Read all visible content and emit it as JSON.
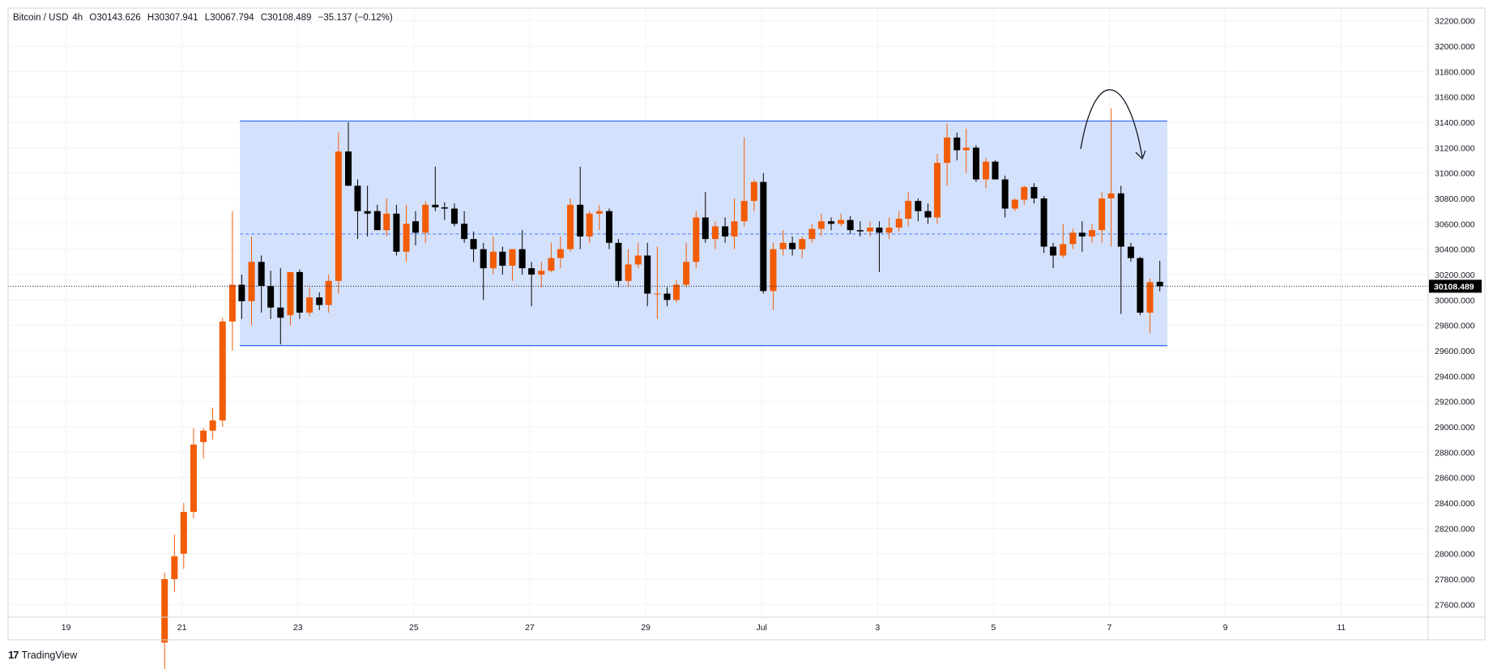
{
  "header": {
    "symbol": "Bitcoin / USD",
    "interval": "4h",
    "open": "O30143.626",
    "high": "H30307.941",
    "low": "L30067.794",
    "close": "C30108.489",
    "change": "−35.137 (−0.12%)"
  },
  "brand": {
    "name": "TradingView"
  },
  "colors": {
    "up": "#f25c05",
    "down": "#000000",
    "range_fill": "#cddcfc",
    "range_line": "#2962ff",
    "grid": "#f0f3fa"
  },
  "chart_data": {
    "type": "candlestick",
    "ylim": [
      27500,
      32300
    ],
    "y_ticks": [
      "32200.000",
      "32000.000",
      "31800.000",
      "31600.000",
      "31400.000",
      "31200.000",
      "31000.000",
      "30800.000",
      "30600.000",
      "30400.000",
      "30200.000",
      "30000.000",
      "29800.000",
      "29600.000",
      "29400.000",
      "29200.000",
      "29000.000",
      "28800.000",
      "28600.000",
      "28400.000",
      "28200.000",
      "28000.000",
      "27800.000",
      "27600.000"
    ],
    "x_ticks": [
      {
        "label": "19",
        "day": 19
      },
      {
        "label": "21",
        "day": 21
      },
      {
        "label": "23",
        "day": 23
      },
      {
        "label": "25",
        "day": 25
      },
      {
        "label": "27",
        "day": 27
      },
      {
        "label": "29",
        "day": 29
      },
      {
        "label": "Jul",
        "day": 31
      },
      {
        "label": "3",
        "day": 33
      },
      {
        "label": "5",
        "day": 35
      },
      {
        "label": "7",
        "day": 37
      },
      {
        "label": "9",
        "day": 39
      },
      {
        "label": "11",
        "day": 41
      }
    ],
    "xlim": [
      18,
      42.5
    ],
    "last_price": "30108.489",
    "last_value": 30108,
    "range_box": {
      "start_day": 22.0,
      "end_day": 38.0,
      "top": 31410,
      "bottom": 29640,
      "mid": 30520
    },
    "candles": [
      {
        "t": 20.7,
        "o": 27300,
        "h": 27850,
        "l": 27000,
        "c": 27800
      },
      {
        "t": 20.87,
        "o": 27800,
        "h": 28150,
        "l": 27700,
        "c": 27980
      },
      {
        "t": 21.03,
        "o": 28000,
        "h": 28400,
        "l": 27880,
        "c": 28330
      },
      {
        "t": 21.2,
        "o": 28330,
        "h": 28990,
        "l": 28280,
        "c": 28860
      },
      {
        "t": 21.37,
        "o": 28880,
        "h": 28990,
        "l": 28750,
        "c": 28970
      },
      {
        "t": 21.53,
        "o": 28970,
        "h": 29150,
        "l": 28900,
        "c": 29050
      },
      {
        "t": 21.7,
        "o": 29050,
        "h": 29860,
        "l": 29000,
        "c": 29830
      },
      {
        "t": 21.87,
        "o": 29830,
        "h": 30700,
        "l": 29600,
        "c": 30120
      },
      {
        "t": 22.03,
        "o": 30120,
        "h": 30200,
        "l": 29850,
        "c": 29990
      },
      {
        "t": 22.2,
        "o": 29990,
        "h": 30500,
        "l": 29800,
        "c": 30300
      },
      {
        "t": 22.37,
        "o": 30300,
        "h": 30350,
        "l": 29900,
        "c": 30110
      },
      {
        "t": 22.53,
        "o": 30110,
        "h": 30230,
        "l": 29850,
        "c": 29940
      },
      {
        "t": 22.7,
        "o": 29940,
        "h": 30250,
        "l": 29650,
        "c": 29860
      },
      {
        "t": 22.87,
        "o": 29880,
        "h": 30200,
        "l": 29800,
        "c": 30220
      },
      {
        "t": 23.03,
        "o": 30220,
        "h": 30240,
        "l": 29850,
        "c": 29900
      },
      {
        "t": 23.2,
        "o": 29900,
        "h": 30100,
        "l": 29870,
        "c": 30020
      },
      {
        "t": 23.37,
        "o": 30020,
        "h": 30060,
        "l": 29920,
        "c": 29960
      },
      {
        "t": 23.53,
        "o": 29960,
        "h": 30200,
        "l": 29900,
        "c": 30150
      },
      {
        "t": 23.7,
        "o": 30150,
        "h": 31320,
        "l": 30050,
        "c": 31170
      },
      {
        "t": 23.87,
        "o": 31170,
        "h": 31400,
        "l": 30900,
        "c": 30900
      },
      {
        "t": 24.03,
        "o": 30900,
        "h": 30950,
        "l": 30480,
        "c": 30700
      },
      {
        "t": 24.2,
        "o": 30700,
        "h": 30900,
        "l": 30500,
        "c": 30680
      },
      {
        "t": 24.37,
        "o": 30700,
        "h": 30750,
        "l": 30550,
        "c": 30550
      },
      {
        "t": 24.53,
        "o": 30550,
        "h": 30800,
        "l": 30500,
        "c": 30680
      },
      {
        "t": 24.7,
        "o": 30680,
        "h": 30750,
        "l": 30350,
        "c": 30380
      },
      {
        "t": 24.87,
        "o": 30380,
        "h": 30750,
        "l": 30300,
        "c": 30600
      },
      {
        "t": 25.03,
        "o": 30620,
        "h": 30700,
        "l": 30430,
        "c": 30530
      },
      {
        "t": 25.2,
        "o": 30530,
        "h": 30780,
        "l": 30450,
        "c": 30750
      },
      {
        "t": 25.37,
        "o": 30750,
        "h": 31050,
        "l": 30700,
        "c": 30730
      },
      {
        "t": 25.53,
        "o": 30730,
        "h": 30770,
        "l": 30630,
        "c": 30720
      },
      {
        "t": 25.7,
        "o": 30720,
        "h": 30760,
        "l": 30580,
        "c": 30600
      },
      {
        "t": 25.87,
        "o": 30600,
        "h": 30700,
        "l": 30450,
        "c": 30480
      },
      {
        "t": 26.03,
        "o": 30480,
        "h": 30540,
        "l": 30300,
        "c": 30400
      },
      {
        "t": 26.2,
        "o": 30400,
        "h": 30450,
        "l": 30000,
        "c": 30250
      },
      {
        "t": 26.37,
        "o": 30250,
        "h": 30500,
        "l": 30200,
        "c": 30380
      },
      {
        "t": 26.53,
        "o": 30380,
        "h": 30420,
        "l": 30200,
        "c": 30270
      },
      {
        "t": 26.7,
        "o": 30270,
        "h": 30400,
        "l": 30150,
        "c": 30400
      },
      {
        "t": 26.87,
        "o": 30400,
        "h": 30550,
        "l": 30200,
        "c": 30250
      },
      {
        "t": 27.03,
        "o": 30250,
        "h": 30300,
        "l": 29950,
        "c": 30200
      },
      {
        "t": 27.2,
        "o": 30200,
        "h": 30300,
        "l": 30100,
        "c": 30230
      },
      {
        "t": 27.37,
        "o": 30230,
        "h": 30450,
        "l": 30220,
        "c": 30330
      },
      {
        "t": 27.53,
        "o": 30330,
        "h": 30500,
        "l": 30250,
        "c": 30400
      },
      {
        "t": 27.7,
        "o": 30400,
        "h": 30800,
        "l": 30380,
        "c": 30750
      },
      {
        "t": 27.87,
        "o": 30750,
        "h": 31050,
        "l": 30400,
        "c": 30500
      },
      {
        "t": 28.03,
        "o": 30500,
        "h": 30700,
        "l": 30450,
        "c": 30680
      },
      {
        "t": 28.2,
        "o": 30680,
        "h": 30750,
        "l": 30550,
        "c": 30700
      },
      {
        "t": 28.37,
        "o": 30700,
        "h": 30720,
        "l": 30400,
        "c": 30450
      },
      {
        "t": 28.53,
        "o": 30450,
        "h": 30480,
        "l": 30100,
        "c": 30150
      },
      {
        "t": 28.7,
        "o": 30150,
        "h": 30400,
        "l": 30100,
        "c": 30280
      },
      {
        "t": 28.87,
        "o": 30280,
        "h": 30450,
        "l": 30250,
        "c": 30350
      },
      {
        "t": 29.03,
        "o": 30350,
        "h": 30450,
        "l": 29950,
        "c": 30050
      },
      {
        "t": 29.2,
        "o": 30050,
        "h": 30420,
        "l": 29850,
        "c": 30050
      },
      {
        "t": 29.37,
        "o": 30050,
        "h": 30100,
        "l": 29950,
        "c": 30000
      },
      {
        "t": 29.53,
        "o": 30000,
        "h": 30160,
        "l": 29980,
        "c": 30120
      },
      {
        "t": 29.7,
        "o": 30120,
        "h": 30450,
        "l": 30100,
        "c": 30300
      },
      {
        "t": 29.87,
        "o": 30300,
        "h": 30700,
        "l": 30250,
        "c": 30650
      },
      {
        "t": 30.03,
        "o": 30650,
        "h": 30850,
        "l": 30450,
        "c": 30480
      },
      {
        "t": 30.2,
        "o": 30480,
        "h": 30620,
        "l": 30400,
        "c": 30580
      },
      {
        "t": 30.37,
        "o": 30580,
        "h": 30650,
        "l": 30450,
        "c": 30500
      },
      {
        "t": 30.53,
        "o": 30500,
        "h": 30800,
        "l": 30400,
        "c": 30620
      },
      {
        "t": 30.7,
        "o": 30620,
        "h": 31280,
        "l": 30580,
        "c": 30780
      },
      {
        "t": 30.87,
        "o": 30780,
        "h": 30950,
        "l": 30700,
        "c": 30930
      },
      {
        "t": 31.03,
        "o": 30930,
        "h": 31000,
        "l": 30050,
        "c": 30070
      },
      {
        "t": 31.2,
        "o": 30070,
        "h": 30450,
        "l": 29920,
        "c": 30400
      },
      {
        "t": 31.37,
        "o": 30400,
        "h": 30550,
        "l": 30350,
        "c": 30450
      },
      {
        "t": 31.53,
        "o": 30450,
        "h": 30500,
        "l": 30350,
        "c": 30400
      },
      {
        "t": 31.7,
        "o": 30400,
        "h": 30500,
        "l": 30330,
        "c": 30480
      },
      {
        "t": 31.87,
        "o": 30480,
        "h": 30600,
        "l": 30450,
        "c": 30560
      },
      {
        "t": 32.03,
        "o": 30560,
        "h": 30680,
        "l": 30500,
        "c": 30620
      },
      {
        "t": 32.2,
        "o": 30620,
        "h": 30650,
        "l": 30550,
        "c": 30600
      },
      {
        "t": 32.37,
        "o": 30600,
        "h": 30680,
        "l": 30580,
        "c": 30630
      },
      {
        "t": 32.53,
        "o": 30630,
        "h": 30660,
        "l": 30520,
        "c": 30550
      },
      {
        "t": 32.7,
        "o": 30550,
        "h": 30620,
        "l": 30500,
        "c": 30540
      },
      {
        "t": 32.87,
        "o": 30540,
        "h": 30620,
        "l": 30500,
        "c": 30570
      },
      {
        "t": 33.03,
        "o": 30570,
        "h": 30620,
        "l": 30220,
        "c": 30530
      },
      {
        "t": 33.2,
        "o": 30530,
        "h": 30650,
        "l": 30480,
        "c": 30570
      },
      {
        "t": 33.37,
        "o": 30570,
        "h": 30700,
        "l": 30540,
        "c": 30640
      },
      {
        "t": 33.53,
        "o": 30640,
        "h": 30850,
        "l": 30580,
        "c": 30780
      },
      {
        "t": 33.7,
        "o": 30780,
        "h": 30800,
        "l": 30620,
        "c": 30700
      },
      {
        "t": 33.87,
        "o": 30700,
        "h": 30760,
        "l": 30600,
        "c": 30650
      },
      {
        "t": 34.03,
        "o": 30650,
        "h": 31150,
        "l": 30600,
        "c": 31080
      },
      {
        "t": 34.2,
        "o": 31080,
        "h": 31390,
        "l": 30900,
        "c": 31280
      },
      {
        "t": 34.37,
        "o": 31280,
        "h": 31320,
        "l": 31100,
        "c": 31180
      },
      {
        "t": 34.53,
        "o": 31180,
        "h": 31350,
        "l": 31000,
        "c": 31200
      },
      {
        "t": 34.7,
        "o": 31200,
        "h": 31220,
        "l": 30930,
        "c": 30950
      },
      {
        "t": 34.87,
        "o": 30950,
        "h": 31120,
        "l": 30880,
        "c": 31090
      },
      {
        "t": 35.03,
        "o": 31090,
        "h": 31100,
        "l": 30950,
        "c": 30950
      },
      {
        "t": 35.2,
        "o": 30950,
        "h": 30980,
        "l": 30650,
        "c": 30720
      },
      {
        "t": 35.37,
        "o": 30720,
        "h": 30800,
        "l": 30700,
        "c": 30790
      },
      {
        "t": 35.53,
        "o": 30790,
        "h": 30900,
        "l": 30750,
        "c": 30890
      },
      {
        "t": 35.7,
        "o": 30890,
        "h": 30920,
        "l": 30760,
        "c": 30800
      },
      {
        "t": 35.87,
        "o": 30800,
        "h": 30820,
        "l": 30370,
        "c": 30420
      },
      {
        "t": 36.03,
        "o": 30420,
        "h": 30450,
        "l": 30250,
        "c": 30350
      },
      {
        "t": 36.2,
        "o": 30350,
        "h": 30600,
        "l": 30330,
        "c": 30440
      },
      {
        "t": 36.37,
        "o": 30440,
        "h": 30560,
        "l": 30400,
        "c": 30530
      },
      {
        "t": 36.53,
        "o": 30530,
        "h": 30620,
        "l": 30380,
        "c": 30500
      },
      {
        "t": 36.7,
        "o": 30500,
        "h": 30600,
        "l": 30450,
        "c": 30550
      },
      {
        "t": 36.87,
        "o": 30550,
        "h": 30850,
        "l": 30450,
        "c": 30800
      },
      {
        "t": 37.03,
        "o": 30800,
        "h": 31510,
        "l": 30420,
        "c": 30840
      },
      {
        "t": 37.2,
        "o": 30840,
        "h": 30900,
        "l": 29890,
        "c": 30420
      },
      {
        "t": 37.37,
        "o": 30420,
        "h": 30450,
        "l": 30300,
        "c": 30330
      },
      {
        "t": 37.53,
        "o": 30330,
        "h": 30340,
        "l": 29880,
        "c": 29900
      },
      {
        "t": 37.7,
        "o": 29900,
        "h": 30170,
        "l": 29740,
        "c": 30140
      },
      {
        "t": 37.87,
        "o": 30143,
        "h": 30308,
        "l": 30068,
        "c": 30108
      }
    ]
  }
}
